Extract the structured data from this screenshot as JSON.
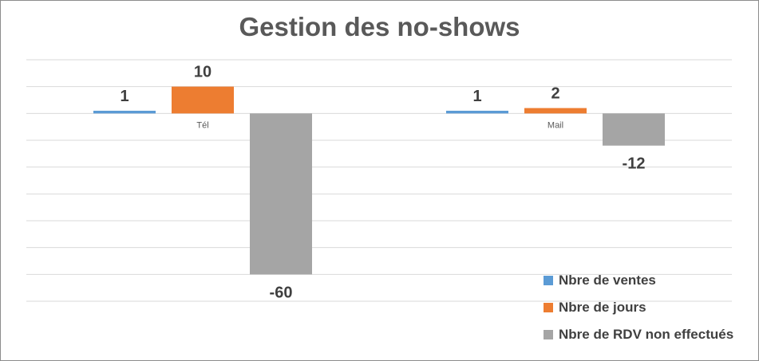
{
  "chart_data": {
    "type": "bar",
    "title": "Gestion des no-shows",
    "xlabel": "",
    "ylabel": "",
    "categories": [
      "Tél",
      "Mail"
    ],
    "series": [
      {
        "name": "Nbre de ventes",
        "values": [
          1,
          1
        ],
        "labels": [
          "1",
          "1"
        ],
        "color": "#5b9bd5"
      },
      {
        "name": "Nbre de jours",
        "values": [
          10,
          2
        ],
        "labels": [
          "10",
          "2"
        ],
        "color": "#ed7d31"
      },
      {
        "name": "Nbre de RDV non effectués",
        "values": [
          -60,
          -12
        ],
        "labels": [
          "-60",
          "-12"
        ],
        "color": "#a5a5a5"
      }
    ],
    "ylim": [
      -70,
      20
    ],
    "grid": true,
    "legend_position": "bottom-right",
    "gridline_color": "#d9d9d9",
    "label_color": "#404040"
  }
}
